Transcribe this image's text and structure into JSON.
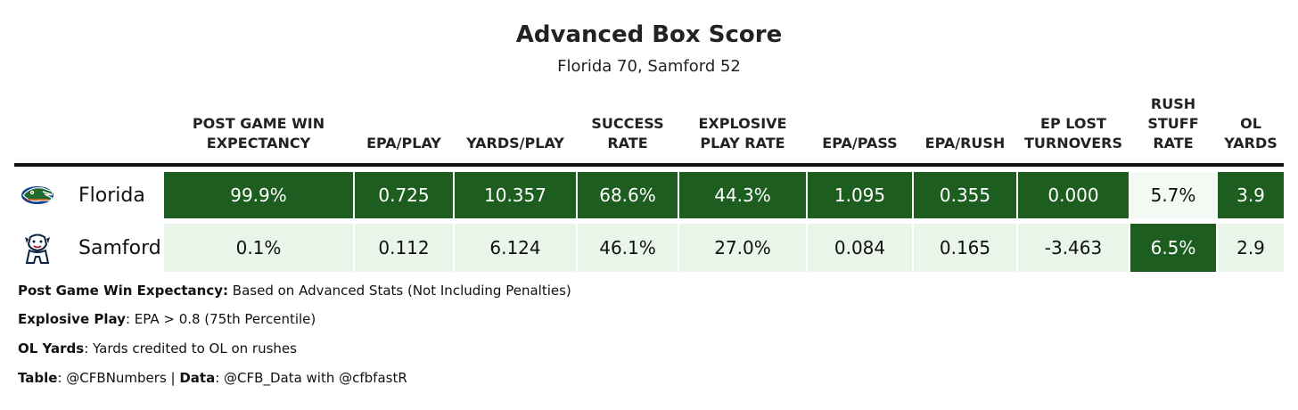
{
  "title": "Advanced Box Score",
  "subtitle": "Florida 70, Samford 52",
  "colors": {
    "dark_green": "#1d5e20",
    "light_green": "#e8f5e8",
    "pale_green": "#f3faf3"
  },
  "chart_data": {
    "type": "table",
    "columns": [
      {
        "key": "wp",
        "lines": [
          "POST GAME WIN",
          "EXPECTANCY"
        ]
      },
      {
        "key": "epa_play",
        "lines": [
          "EPA/PLAY"
        ]
      },
      {
        "key": "ypp",
        "lines": [
          "YARDS/PLAY"
        ]
      },
      {
        "key": "sr",
        "lines": [
          "SUCCESS",
          "RATE"
        ]
      },
      {
        "key": "expl",
        "lines": [
          "EXPLOSIVE",
          "PLAY RATE"
        ]
      },
      {
        "key": "epa_pass",
        "lines": [
          "EPA/PASS"
        ]
      },
      {
        "key": "epa_rush",
        "lines": [
          "EPA/RUSH"
        ]
      },
      {
        "key": "ep_to",
        "lines": [
          "EP LOST",
          "TURNOVERS"
        ]
      },
      {
        "key": "stuff",
        "lines": [
          "RUSH",
          "STUFF",
          "RATE"
        ]
      },
      {
        "key": "ol",
        "lines": [
          "OL",
          "YARDS"
        ]
      }
    ],
    "rows": [
      {
        "team": "Florida",
        "logo_icon": "florida-gators-logo-icon",
        "values": [
          "99.9%",
          "0.725",
          "10.357",
          "68.6%",
          "44.3%",
          "1.095",
          "0.355",
          "0.000",
          "5.7%",
          "3.9"
        ],
        "shade": [
          "dark",
          "dark",
          "dark",
          "dark",
          "dark",
          "dark",
          "dark",
          "dark",
          "pale",
          "dark"
        ]
      },
      {
        "team": "Samford",
        "logo_icon": "samford-bulldog-logo-icon",
        "values": [
          "0.1%",
          "0.112",
          "6.124",
          "46.1%",
          "27.0%",
          "0.084",
          "0.165",
          "-3.463",
          "6.5%",
          "2.9"
        ],
        "shade": [
          "light",
          "light",
          "light",
          "light",
          "light",
          "light",
          "light",
          "light",
          "dark",
          "light"
        ]
      }
    ]
  },
  "notes": [
    {
      "label": "Post Game Win Expectancy:",
      "text": " Based on Advanced Stats (Not Including Penalties)"
    },
    {
      "label": "Explosive Play",
      "text": ": EPA > 0.8 (75th Percentile)"
    },
    {
      "label": "OL Yards",
      "text": ": Yards credited to OL on rushes"
    }
  ],
  "credits": {
    "table_label": "Table",
    "table_text": ": @CFBNumbers | ",
    "data_label": "Data",
    "data_text": ": @CFB_Data with @cfbfastR"
  }
}
